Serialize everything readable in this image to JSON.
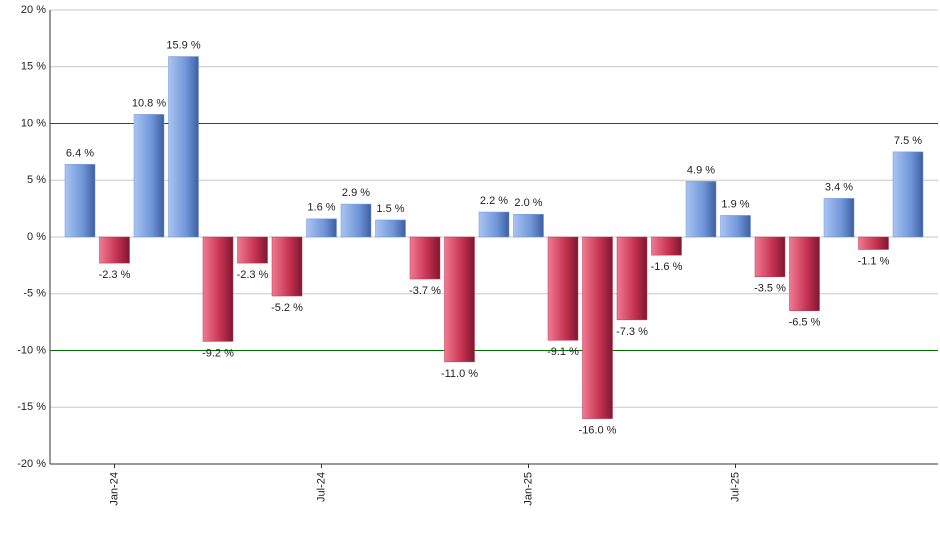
{
  "chart_data": {
    "type": "bar",
    "categories": [
      null,
      "Jan-24",
      null,
      null,
      null,
      null,
      null,
      "Jul-24",
      null,
      null,
      null,
      null,
      null,
      "Jan-25",
      null,
      null,
      null,
      null,
      null,
      "Jul-25",
      null,
      null,
      null,
      null,
      null
    ],
    "values": [
      6.4,
      -2.3,
      10.8,
      15.9,
      -9.2,
      -2.3,
      -5.2,
      1.6,
      2.9,
      1.5,
      -3.7,
      -11.0,
      2.2,
      2.0,
      -9.1,
      -16.0,
      -7.3,
      -1.6,
      4.9,
      1.9,
      -3.5,
      -6.5,
      3.4,
      -1.1,
      7.5
    ],
    "value_labels": [
      "6.4 %",
      "-2.3 %",
      "10.8 %",
      "15.9 %",
      "-9.2 %",
      "-2.3 %",
      "-5.2 %",
      "1.6 %",
      "2.9 %",
      "1.5 %",
      "-3.7 %",
      "-11.0 %",
      "2.2 %",
      "2.0 %",
      "-9.1 %",
      "-16.0 %",
      "-7.3 %",
      "-1.6 %",
      "4.9 %",
      "1.9 %",
      "-3.5 %",
      "-6.5 %",
      "3.4 %",
      "-1.1 %",
      "7.5 %"
    ],
    "positive_color": "#6f95d8",
    "negative_color": "#c4304f",
    "ylim": [
      -20,
      20
    ],
    "yticks": [
      {
        "value": -20,
        "label": "-20 %"
      },
      {
        "value": -15,
        "label": "-15 %"
      },
      {
        "value": -10,
        "label": "-10 %"
      },
      {
        "value": -5,
        "label": "-5 %"
      },
      {
        "value": 0,
        "label": "0 %"
      },
      {
        "value": 5,
        "label": "5 %"
      },
      {
        "value": 10,
        "label": "10 %"
      },
      {
        "value": 15,
        "label": "15 %"
      },
      {
        "value": 20,
        "label": "20 %"
      }
    ],
    "grid": true,
    "reference_lines": [
      {
        "value": 10,
        "color": "#007000"
      },
      {
        "value": -10,
        "color": "#007000"
      }
    ]
  }
}
